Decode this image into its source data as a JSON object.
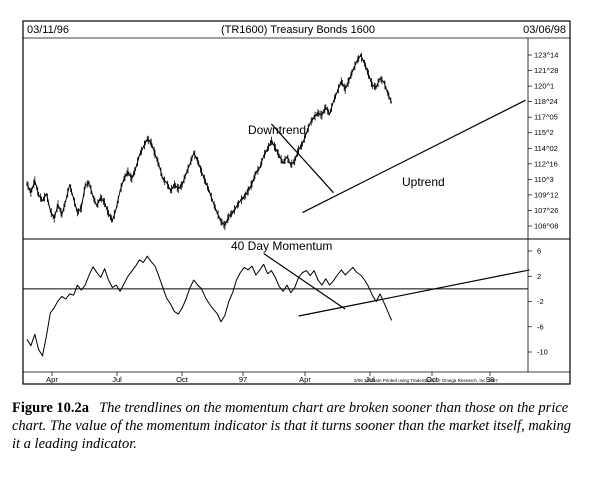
{
  "chart_data": [
    {
      "type": "line",
      "title": "(TR1600) Treasury Bonds 1600",
      "start_date": "03/11/96",
      "end_date": "03/06/98",
      "x_labels": [
        "Apr",
        "Jul",
        "Oct",
        "97",
        "Apr",
        "Jul",
        "Oct",
        "98"
      ],
      "y_ticks": [
        "123^14",
        "121^28",
        "120^1",
        "118^24",
        "117^05",
        "115^2",
        "114^02",
        "112^16",
        "110^3",
        "109^12",
        "107^26",
        "106^08"
      ],
      "ylim": [
        106.25,
        123.44
      ],
      "series": [
        {
          "values": [
            110.5,
            109.6,
            110.8,
            109.4,
            108.8,
            109.5,
            107.8,
            107.0,
            108.4,
            107.4,
            108.8,
            110.4,
            109.0,
            107.6,
            108.1,
            110.3,
            110.6,
            109.2,
            108.3,
            109.1,
            108.6,
            107.5,
            106.8,
            108.0,
            109.8,
            111.0,
            111.7,
            111.0,
            112.0,
            113.4,
            114.2,
            115.0,
            114.6,
            113.5,
            112.4,
            111.0,
            110.6,
            109.8,
            110.4,
            110.0,
            110.4,
            111.5,
            112.5,
            113.6,
            112.8,
            111.7,
            110.7,
            109.7,
            108.6,
            107.6,
            106.7,
            106.3,
            107.2,
            107.6,
            108.2,
            108.8,
            109.2,
            109.8,
            110.5,
            111.6,
            112.1,
            113.3,
            114.0,
            114.8,
            114.1,
            113.3,
            112.6,
            113.2,
            112.4,
            112.8,
            113.9,
            114.5,
            115.6,
            116.6,
            117.2,
            117.6,
            117.4,
            118.2,
            117.5,
            118.8,
            119.8,
            120.8,
            120.0,
            120.9,
            121.9,
            122.8,
            123.4,
            122.6,
            121.5,
            120.4,
            120.2,
            121.1,
            120.7,
            119.6,
            118.6
          ]
        }
      ],
      "annotations": [
        {
          "text": "Downtrend",
          "from": [
            63,
            116.5
          ],
          "to": [
            79,
            109.6
          ]
        },
        {
          "text": "Uptrend",
          "from": [
            71,
            107.6
          ],
          "to": [
            128.5,
            118.9
          ]
        }
      ]
    },
    {
      "type": "line",
      "title": "40 Day Momentum",
      "y_ticks": [
        "6",
        "2",
        "-2",
        "-6",
        "-10"
      ],
      "ylim": [
        -10,
        6
      ],
      "reference_line": 0,
      "series": [
        {
          "values": [
            -8.0,
            -9.0,
            -7.2,
            -9.6,
            -10.6,
            -7.5,
            -3.8,
            -3.0,
            -1.9,
            -1.2,
            -1.6,
            -0.8,
            -1.0,
            0.6,
            -0.2,
            0.6,
            2.2,
            3.5,
            2.6,
            1.8,
            3.2,
            1.4,
            0.2,
            0.6,
            -0.4,
            0.8,
            2.0,
            2.8,
            3.6,
            4.6,
            4.2,
            5.2,
            4.3,
            3.6,
            2.0,
            0.2,
            -1.5,
            -2.4,
            -3.6,
            -4.0,
            -3.0,
            -1.6,
            0.2,
            1.4,
            0.6,
            0.0,
            -1.4,
            -2.4,
            -3.2,
            -3.9,
            -5.2,
            -4.2,
            -2.0,
            -0.6,
            1.4,
            2.6,
            3.4,
            3.0,
            3.6,
            2.2,
            3.0,
            3.9,
            2.4,
            2.9,
            1.8,
            0.4,
            -0.4,
            0.6,
            -0.6,
            0.2,
            1.8,
            2.6,
            2.9,
            2.1,
            2.9,
            1.4,
            0.6,
            1.6,
            0.6,
            1.3,
            2.2,
            3.0,
            2.2,
            2.8,
            3.4,
            2.6,
            2.2,
            1.4,
            0.4,
            -1.0,
            -2.0,
            -0.8,
            -2.2,
            -3.6,
            -5.0
          ]
        }
      ],
      "annotations": [
        {
          "from": [
            61,
            5.6
          ],
          "to": [
            82,
            -3.2
          ]
        },
        {
          "from": [
            70,
            -4.3
          ],
          "to": [
            129.5,
            3.0
          ]
        }
      ]
    }
  ],
  "footer": "3/06 10:53am Printed using TradeStation ® Omega Research, Inc. 1997",
  "caption": {
    "label": "Figure 10.2a",
    "text": "The trendlines on the momentum chart are broken sooner than those on the price chart. The value of the momentum indicator is that it turns sooner than the market itself, making it a leading indicator."
  }
}
